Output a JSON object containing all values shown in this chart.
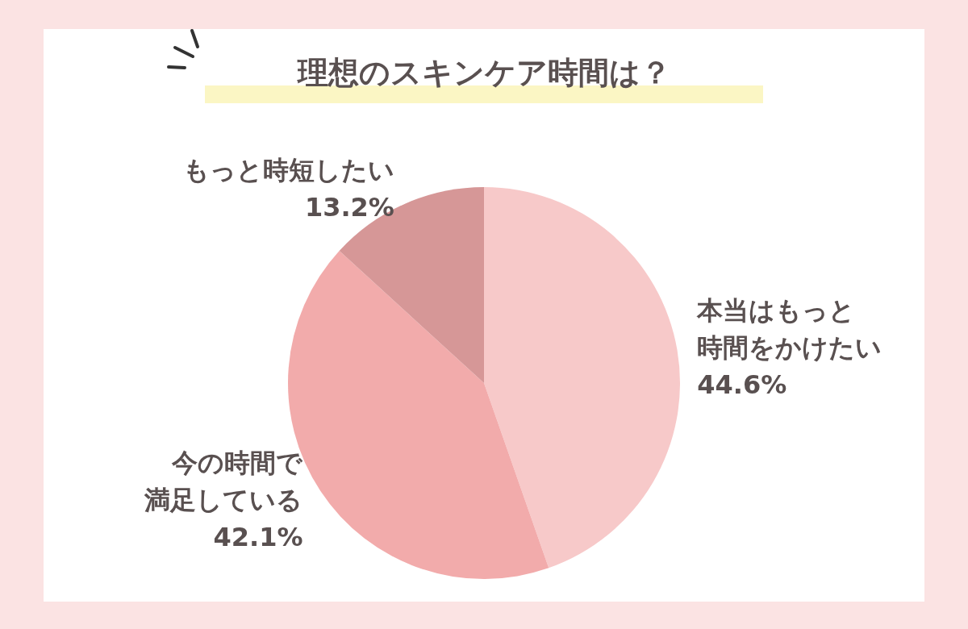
{
  "chart_data": {
    "type": "pie",
    "title": "理想のスキンケア時間は？",
    "categories": [
      "本当はもっと時間をかけたい",
      "今の時間で満足している",
      "もっと時短したい"
    ],
    "values": [
      44.6,
      42.1,
      13.2
    ],
    "value_labels": [
      "44.6%",
      "42.1%",
      "13.2%"
    ],
    "colors": [
      "#f7c9c9",
      "#f2abab",
      "#d69797"
    ],
    "legend": false
  }
}
